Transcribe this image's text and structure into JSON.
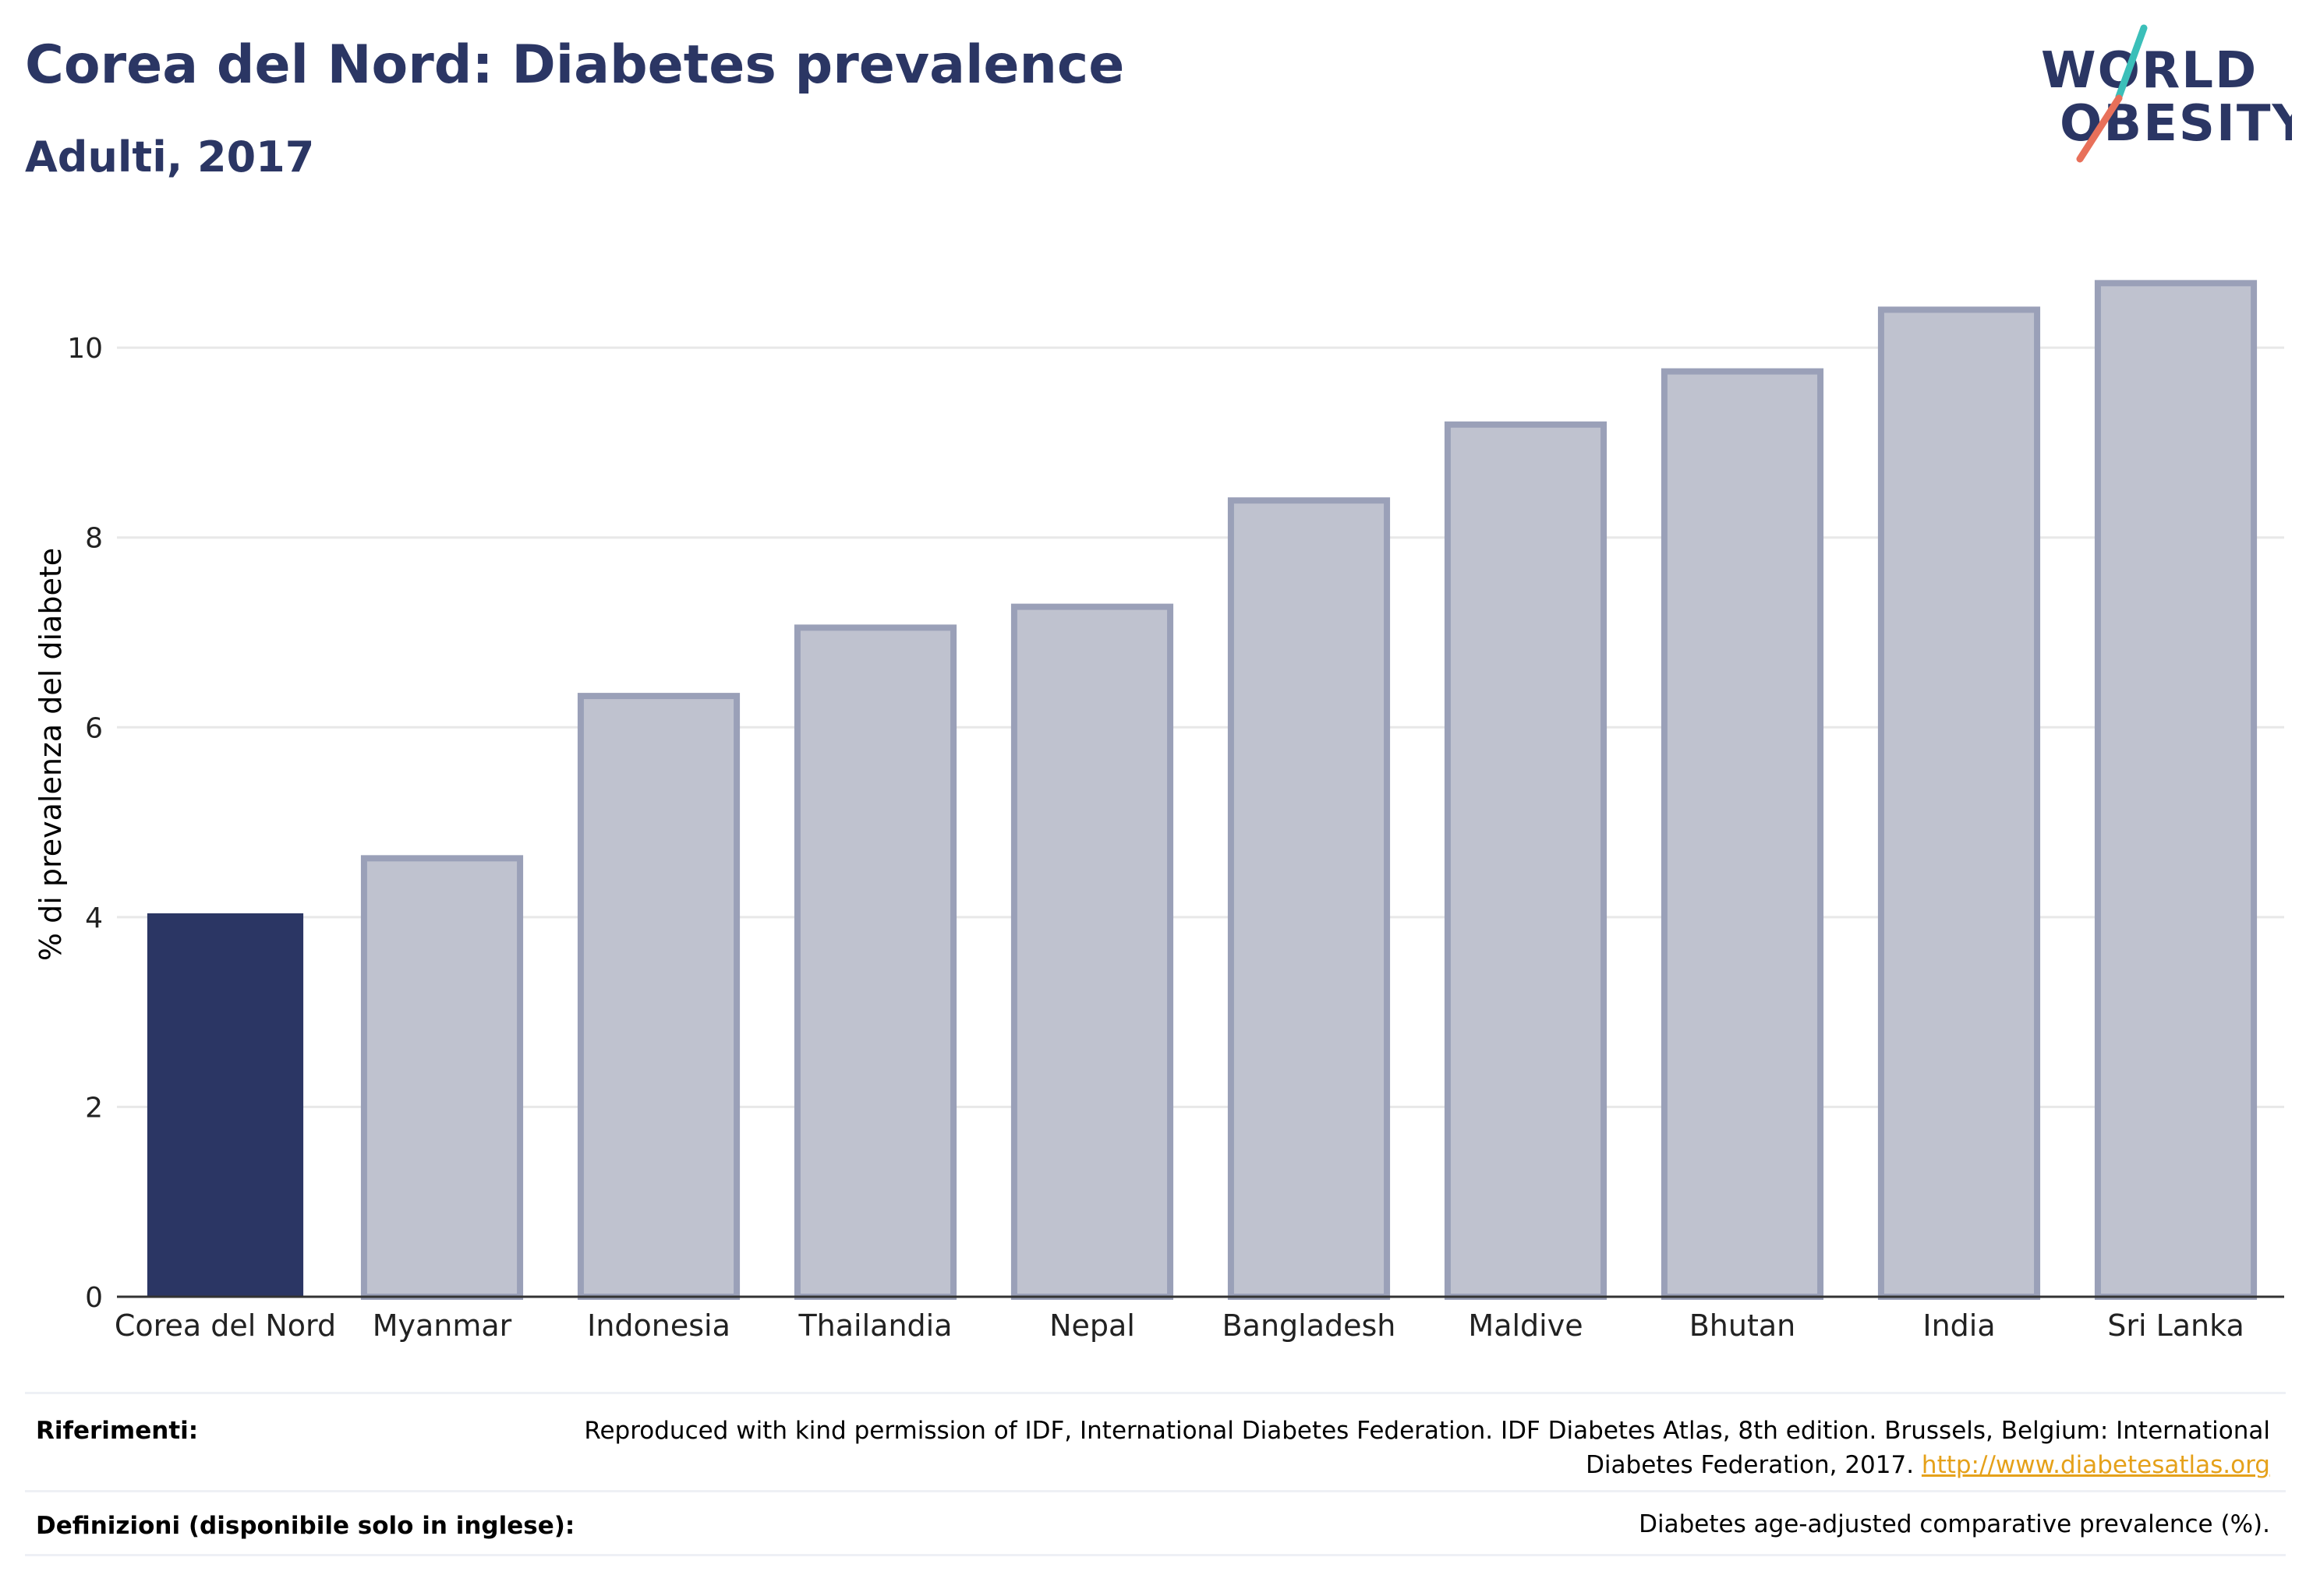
{
  "header": {
    "title": "Corea del Nord: Diabetes prevalence",
    "subtitle": "Adulti, 2017"
  },
  "logo": {
    "line1": "WORLD",
    "line2": "OBESITY",
    "colors": {
      "text": "#2b3664",
      "slash_teal": "#3bbfb9",
      "slash_coral": "#e8705a"
    }
  },
  "chart_data": {
    "type": "bar",
    "categories": [
      "Corea del Nord",
      "Myanmar",
      "Indonesia",
      "Thailandia",
      "Nepal",
      "Bangladesh",
      "Maldive",
      "Bhutan",
      "India",
      "Sri Lanka"
    ],
    "values": [
      4.04,
      4.62,
      6.33,
      7.05,
      7.27,
      8.39,
      9.19,
      9.75,
      10.4,
      10.68
    ],
    "highlight_index": 0,
    "ylabel": "% di prevalenza del diabete",
    "xlabel": "",
    "ylim": [
      0,
      11.2
    ],
    "yticks": [
      0,
      2,
      4,
      6,
      8,
      10
    ],
    "grid": true,
    "colors": {
      "highlight": "#2b3664",
      "bar_fill": "#bfc2cf",
      "bar_stroke": "#9aa0b8",
      "grid": "#e8e8e8",
      "axis": "#333333"
    }
  },
  "footer": {
    "references_label": "Riferimenti:",
    "references_text": "Reproduced with kind permission of IDF, International Diabetes Federation. IDF Diabetes Atlas, 8th edition. Brussels, Belgium: International Diabetes Federation, 2017.",
    "references_link": "http://www.diabetesatlas.org",
    "definitions_label": "Definizioni (disponibile solo in inglese):",
    "definitions_text": "Diabetes age-adjusted comparative prevalence (%)."
  }
}
